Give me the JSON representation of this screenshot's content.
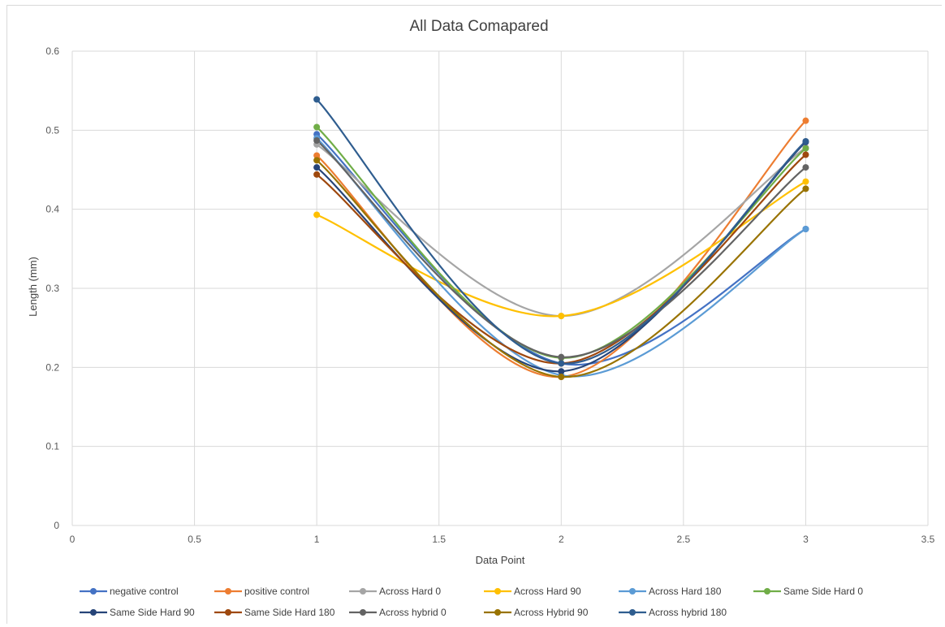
{
  "chart_data": {
    "type": "line",
    "smooth": true,
    "title": "All Data Comapared",
    "xlabel": "Data Point",
    "ylabel": "Length (mm)",
    "xlim": [
      0,
      3.5
    ],
    "ylim": [
      0,
      0.6
    ],
    "x_ticks": [
      "0",
      "0.5",
      "1",
      "1.5",
      "2",
      "2.5",
      "3",
      "3.5"
    ],
    "y_ticks": [
      "0",
      "0.1",
      "0.2",
      "0.3",
      "0.4",
      "0.5",
      "0.6"
    ],
    "grid": "on",
    "legend_position": "bottom",
    "x": [
      1,
      2,
      3
    ],
    "series": [
      {
        "name": "negative control",
        "color": "#4472c4",
        "values": [
          0.495,
          0.205,
          0.375
        ]
      },
      {
        "name": "positive control",
        "color": "#ed7d31",
        "values": [
          0.468,
          0.188,
          0.512
        ]
      },
      {
        "name": "Across Hard 0",
        "color": "#a5a5a5",
        "values": [
          0.482,
          0.265,
          0.478
        ]
      },
      {
        "name": "Across Hard 90",
        "color": "#ffc000",
        "values": [
          0.393,
          0.265,
          0.435
        ]
      },
      {
        "name": "Across Hard 180",
        "color": "#5b9bd5",
        "values": [
          0.49,
          0.19,
          0.375
        ]
      },
      {
        "name": "Same Side Hard 0",
        "color": "#70ad47",
        "values": [
          0.504,
          0.212,
          0.477
        ]
      },
      {
        "name": "Same Side Hard 90",
        "color": "#264478",
        "values": [
          0.453,
          0.195,
          0.485
        ]
      },
      {
        "name": "Same Side Hard 180",
        "color": "#9e480e",
        "values": [
          0.444,
          0.205,
          0.469
        ]
      },
      {
        "name": "Across hybrid 0",
        "color": "#636363",
        "values": [
          0.487,
          0.213,
          0.453
        ]
      },
      {
        "name": "Across Hybrid 90",
        "color": "#997300",
        "values": [
          0.462,
          0.188,
          0.426
        ]
      },
      {
        "name": "Across hybrid 180",
        "color": "#2f5d8f",
        "values": [
          0.539,
          0.205,
          0.486
        ]
      }
    ]
  }
}
